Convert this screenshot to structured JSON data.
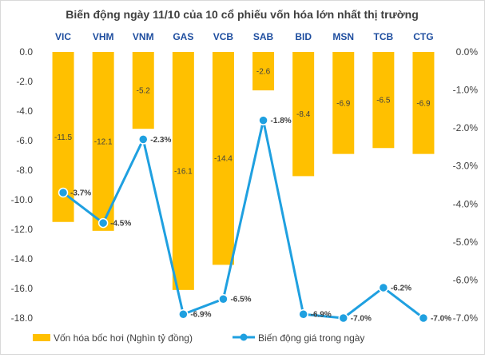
{
  "chart_data": {
    "type": "bar+line",
    "title": "Biến động ngày 11/10 của 10 cổ phiếu vốn hóa lớn nhất thị trường",
    "categories": [
      "VIC",
      "VHM",
      "VNM",
      "GAS",
      "VCB",
      "SAB",
      "BID",
      "MSN",
      "TCB",
      "CTG"
    ],
    "series": [
      {
        "name": "Vốn hóa bốc hơi (Nghìn tỷ đồng)",
        "type": "bar",
        "axis": "left",
        "values": [
          -11.5,
          -12.1,
          -5.2,
          -16.1,
          -14.4,
          -2.6,
          -8.4,
          -6.9,
          -6.5,
          -6.9
        ],
        "labels": [
          "-11.5",
          "-12.1",
          "-5.2",
          "-16.1",
          "-14.4",
          "-2.6",
          "-8.4",
          "-6.9",
          "-6.5",
          "-6.9"
        ],
        "color": "#ffc000"
      },
      {
        "name": "Biến động giá trong ngày",
        "type": "line",
        "axis": "right",
        "values": [
          -3.7,
          -4.5,
          -2.3,
          -6.9,
          -6.5,
          -1.8,
          -6.9,
          -7.0,
          -6.2,
          -7.0
        ],
        "labels": [
          "-3.7%",
          "-4.5%",
          "-2.3%",
          "-6.9%",
          "-6.5%",
          "-1.8%",
          "-6.9%",
          "-7.0%",
          "-6.2%",
          "-7.0%"
        ],
        "color": "#1fa0e0"
      }
    ],
    "y_left": {
      "ylim": [
        -18,
        0
      ],
      "ticks": [
        0,
        -2,
        -4,
        -6,
        -8,
        -10,
        -12,
        -14,
        -16,
        -18
      ],
      "tick_labels": [
        "0.0",
        "-2.0",
        "-4.0",
        "-6.0",
        "-8.0",
        "-10.0",
        "-12.0",
        "-14.0",
        "-16.0",
        "-18.0"
      ]
    },
    "y_right": {
      "ylim": [
        -7,
        0
      ],
      "ticks": [
        0,
        -1,
        -2,
        -3,
        -4,
        -5,
        -6,
        -7
      ],
      "tick_labels": [
        "0.0%",
        "-1.0%",
        "-2.0%",
        "-3.0%",
        "-4.0%",
        "-5.0%",
        "-6.0%",
        "-7.0%"
      ]
    },
    "grid": false,
    "legend_position": "bottom"
  }
}
